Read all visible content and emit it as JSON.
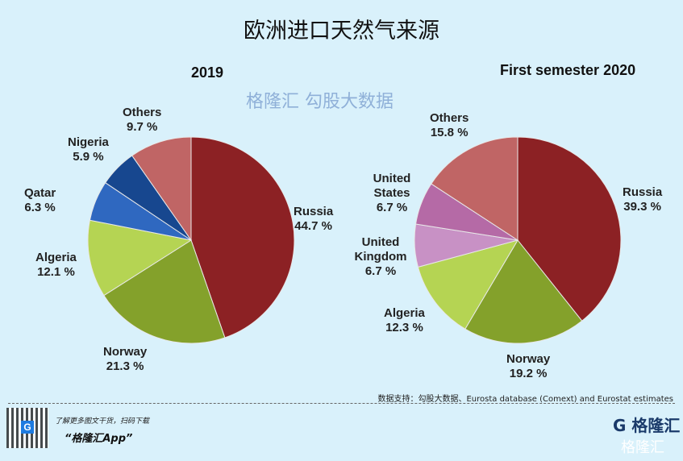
{
  "title": "欧洲进口天然气来源",
  "source": "数据支持：勾股大数据、Eurosta database (Comext) and Eurostat estimates",
  "footer": {
    "promo": "了解更多图文干货，扫码下载",
    "app": "“格隆汇App”",
    "logo": "格隆汇",
    "logo_icon": "G"
  },
  "watermark": "格隆汇 勾股大数据",
  "chart_data": [
    {
      "type": "pie",
      "title": "2019",
      "start": "12 o'clock, clockwise",
      "slices": [
        {
          "name": "Russia",
          "value": 44.7,
          "label": "44.7 %",
          "color": "#8c2124"
        },
        {
          "name": "Norway",
          "value": 21.3,
          "label": "21.3 %",
          "color": "#84a12b"
        },
        {
          "name": "Algeria",
          "value": 12.1,
          "label": "12.1 %",
          "color": "#b5d453"
        },
        {
          "name": "Qatar",
          "value": 6.3,
          "label": "6.3 %",
          "color": "#2f68c0"
        },
        {
          "name": "Nigeria",
          "value": 5.9,
          "label": "5.9 %",
          "color": "#17478f"
        },
        {
          "name": "Others",
          "value": 9.7,
          "label": "9.7 %",
          "color": "#c06565"
        }
      ]
    },
    {
      "type": "pie",
      "title": "First semester 2020",
      "start": "12 o'clock, clockwise",
      "slices": [
        {
          "name": "Russia",
          "value": 39.3,
          "label": "39.3 %",
          "color": "#8c2124"
        },
        {
          "name": "Norway",
          "value": 19.2,
          "label": "19.2 %",
          "color": "#84a12b"
        },
        {
          "name": "Algeria",
          "value": 12.3,
          "label": "12.3 %",
          "color": "#b5d453"
        },
        {
          "name": "United Kingdom",
          "value": 6.7,
          "label": "6.7 %",
          "color": "#c891c5"
        },
        {
          "name": "United States",
          "value": 6.7,
          "label": "6.7 %",
          "color": "#b56aa6"
        },
        {
          "name": "Others",
          "value": 15.8,
          "label": "15.8 %",
          "color": "#c06565"
        }
      ]
    }
  ]
}
